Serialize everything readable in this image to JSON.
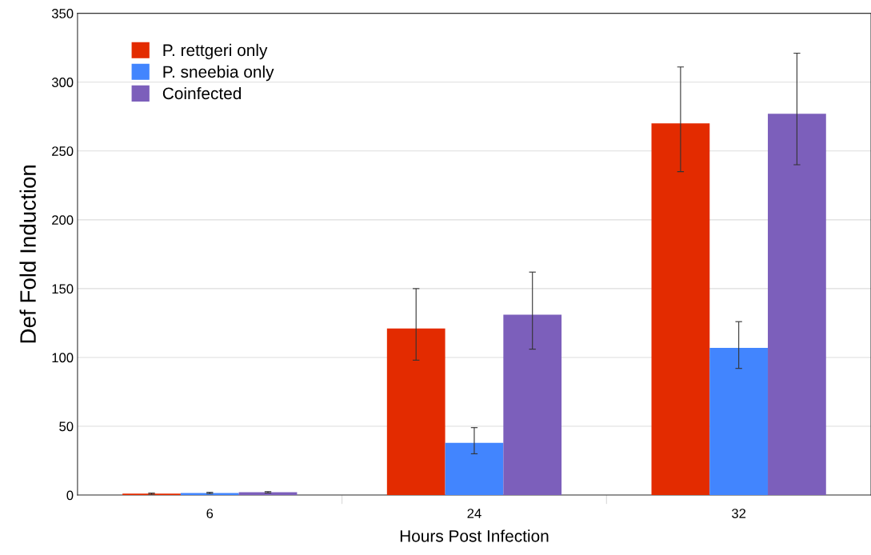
{
  "chart_data": {
    "type": "bar",
    "xlabel": "Hours Post Infection",
    "ylabel": "Def Fold Induction",
    "categories": [
      "6",
      "24",
      "32"
    ],
    "series": [
      {
        "name": "P. rettgeri only",
        "color": "#e32b00",
        "values": [
          1,
          121,
          270
        ],
        "errors": [
          [
            0.5,
            1.5
          ],
          [
            98,
            150
          ],
          [
            235,
            311
          ]
        ]
      },
      {
        "name": "P. sneebia only",
        "color": "#4285fe",
        "values": [
          1.5,
          38,
          107
        ],
        "errors": [
          [
            1,
            2
          ],
          [
            30,
            49
          ],
          [
            92,
            126
          ]
        ]
      },
      {
        "name": "Coinfected",
        "color": "#7c5fbb",
        "values": [
          2,
          131,
          277
        ],
        "errors": [
          [
            1.5,
            2.5
          ],
          [
            106,
            162
          ],
          [
            240,
            321
          ]
        ]
      }
    ],
    "ylim": [
      0,
      350
    ],
    "yticks": [
      0,
      50,
      100,
      150,
      200,
      250,
      300,
      350
    ],
    "grid": "y",
    "legend": "top left"
  }
}
